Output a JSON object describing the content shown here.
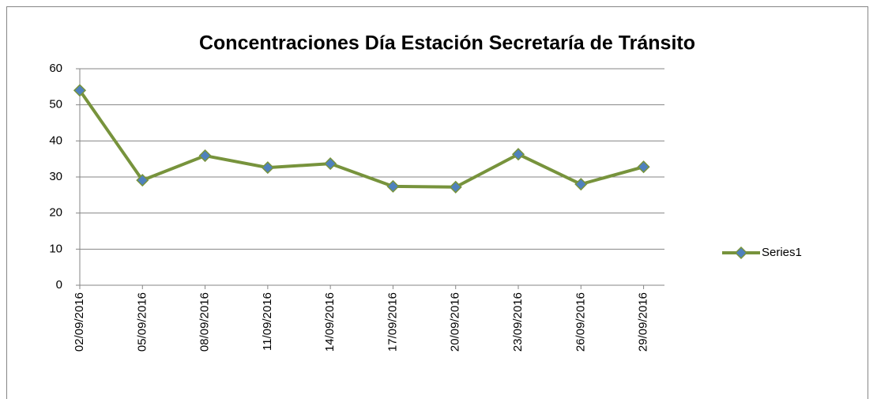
{
  "chart_data": {
    "type": "line",
    "title": "Concentraciones Día Estación Secretaría de Tránsito",
    "x": [
      "02/09/2016",
      "05/09/2016",
      "08/09/2016",
      "11/09/2016",
      "14/09/2016",
      "17/09/2016",
      "20/09/2016",
      "23/09/2016",
      "26/09/2016",
      "29/09/2016"
    ],
    "xlim": [
      "02/09/2016",
      "30/09/2016"
    ],
    "xticks": [
      "02/09/2016",
      "05/09/2016",
      "08/09/2016",
      "11/09/2016",
      "14/09/2016",
      "17/09/2016",
      "20/09/2016",
      "23/09/2016",
      "26/09/2016",
      "29/09/2016"
    ],
    "series": [
      {
        "name": "Series1",
        "color": "#77933c",
        "marker_color": "#4f81bd",
        "values": [
          54,
          29.1,
          35.9,
          32.6,
          33.7,
          27.4,
          27.2,
          36.3,
          28.0,
          32.8
        ]
      }
    ],
    "ylim": [
      0,
      60
    ],
    "yticks": [
      0,
      10,
      20,
      30,
      40,
      50,
      60
    ],
    "grid": true,
    "legend": "right"
  }
}
